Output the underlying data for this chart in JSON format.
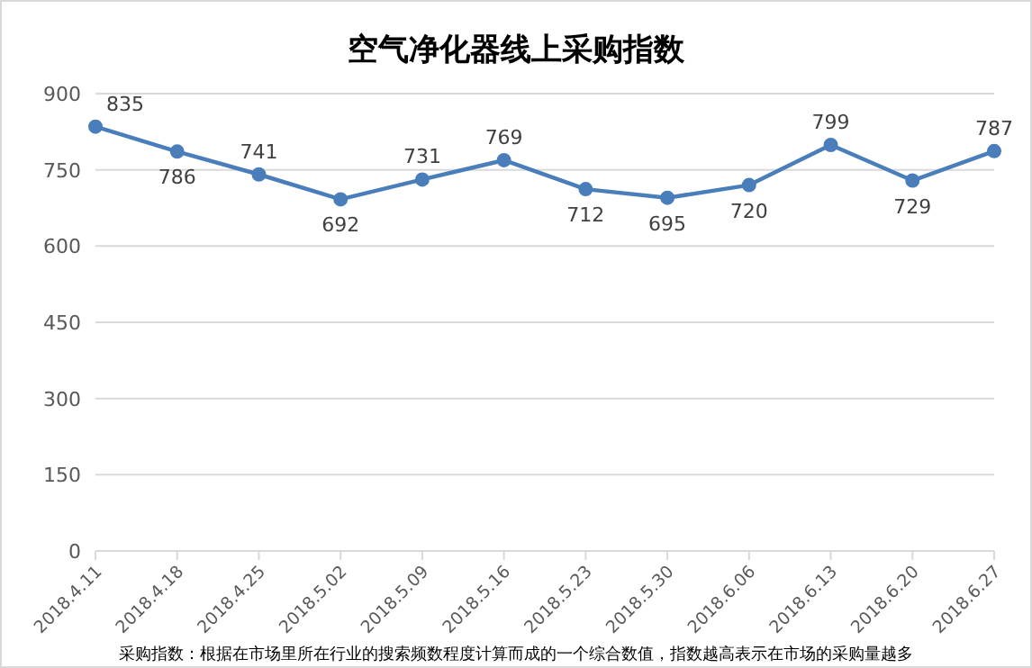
{
  "chart_data": {
    "type": "line",
    "title": "空气净化器线上采购指数",
    "categories": [
      "2018.4.11",
      "2018.4.18",
      "2018.4.25",
      "2018.5.02",
      "2018.5.09",
      "2018.5.16",
      "2018.5.23",
      "2018.5.30",
      "2018.6.06",
      "2018.6.13",
      "2018.6.20",
      "2018.6.27"
    ],
    "series": [
      {
        "color": "#4a7ebb",
        "values": [
          835,
          786,
          741,
          692,
          731,
          769,
          712,
          695,
          720,
          799,
          729,
          787
        ]
      }
    ],
    "ylim": [
      0,
      900
    ],
    "yticks": [
      0,
      150,
      300,
      450,
      600,
      750,
      900
    ],
    "grid": "y",
    "marker": "circle",
    "line_style": "solid",
    "data_labels": true,
    "annotations": [
      "采购指数：根据在市场里所在行业的搜索频数程度计算而成的一个综合数值，指数越高表示在市场的采购量越多"
    ]
  }
}
